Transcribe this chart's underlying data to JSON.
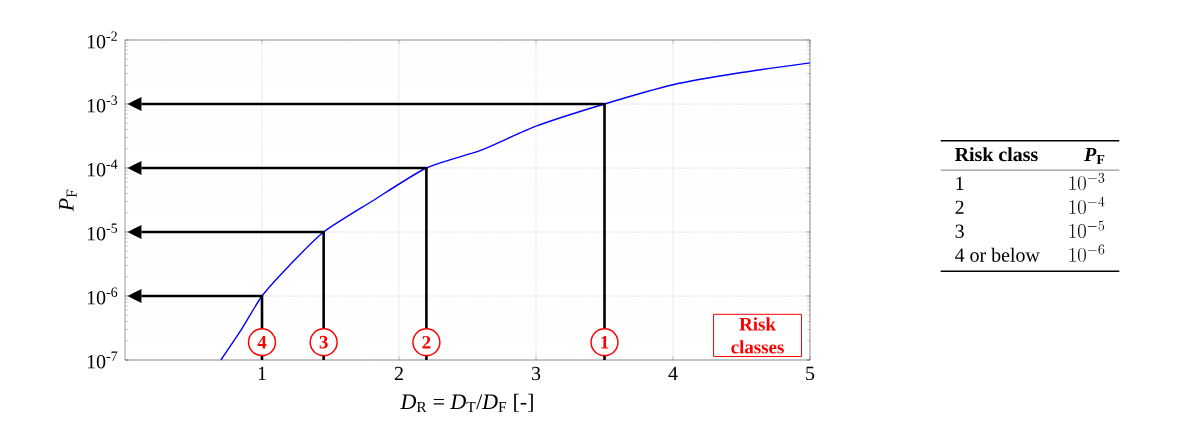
{
  "chart_data": [
    {
      "type": "line",
      "xlabel": "*D*$_{R}$ = *D*$_{T}$/*D*$_{F}$ [-]",
      "ylabel": "*P*$_{F}$",
      "log": "y",
      "grid": true,
      "xlim": [
        0,
        5
      ],
      "xticks": [
        1,
        2,
        3,
        4,
        5
      ],
      "ylim": [
        1e-07,
        0.01
      ],
      "yticks": [
        {
          "value": 1e-07,
          "label": "10$^{-7}$"
        },
        {
          "value": 1e-06,
          "label": "10$^{-6}$"
        },
        {
          "value": 1e-05,
          "label": "10$^{-5}$"
        },
        {
          "value": 0.0001,
          "label": "10$^{-4}$"
        },
        {
          "value": 0.001,
          "label": "10$^{-3}$"
        },
        {
          "value": 0.01,
          "label": "10$^{-2}$"
        }
      ],
      "series": [
        {
          "type": "line",
          "color": "#0000ff",
          "x": [
            0.7,
            0.85,
            1.0,
            1.2,
            1.45,
            1.8,
            2.2,
            2.6,
            3.0,
            3.5,
            4.0,
            4.5,
            5.0
          ],
          "values": [
            1e-07,
            3e-07,
            1e-06,
            3e-06,
            1e-05,
            3e-05,
            0.0001,
            0.00019,
            0.00045,
            0.001,
            0.002,
            0.0031,
            0.0044
          ]
        },
        {
          "type": "line",
          "color": "#000000",
          "x": [
            3.5,
            3.5,
            0.12
          ],
          "values": [
            1e-07,
            0.001,
            0.001
          ]
        },
        {
          "type": "line",
          "color": "#000000",
          "x": [
            2.2,
            2.2,
            0.12
          ],
          "values": [
            1e-07,
            0.0001,
            0.0001
          ]
        },
        {
          "type": "line",
          "color": "#000000",
          "x": [
            1.45,
            1.45,
            0.12
          ],
          "values": [
            1e-07,
            1e-05,
            1e-05
          ]
        },
        {
          "type": "line",
          "color": "#000000",
          "x": [
            1.0,
            1.0,
            0.12
          ],
          "values": [
            1e-07,
            1e-06,
            1e-06
          ]
        }
      ],
      "annotations": [
        {
          "text": "1",
          "x": 3.5,
          "y": 1.9e-07
        },
        {
          "text": "2",
          "x": 2.2,
          "y": 1.9e-07
        },
        {
          "text": "3",
          "x": 1.45,
          "y": 1.9e-07
        },
        {
          "text": "4",
          "x": 1.0,
          "y": 1.9e-07
        },
        "Risk classes"
      ]
    },
    {
      "type": "other",
      "categories": [
        "Risk class",
        "*P*$_{F}$"
      ],
      "y_categories": [
        "1",
        "2",
        "3",
        "4 or below"
      ],
      "cell_labels": [
        [
          "10^{-3}"
        ],
        [
          "10^{-4}"
        ],
        [
          "10^{-5}"
        ],
        [
          "10^{-6}"
        ]
      ]
    }
  ]
}
